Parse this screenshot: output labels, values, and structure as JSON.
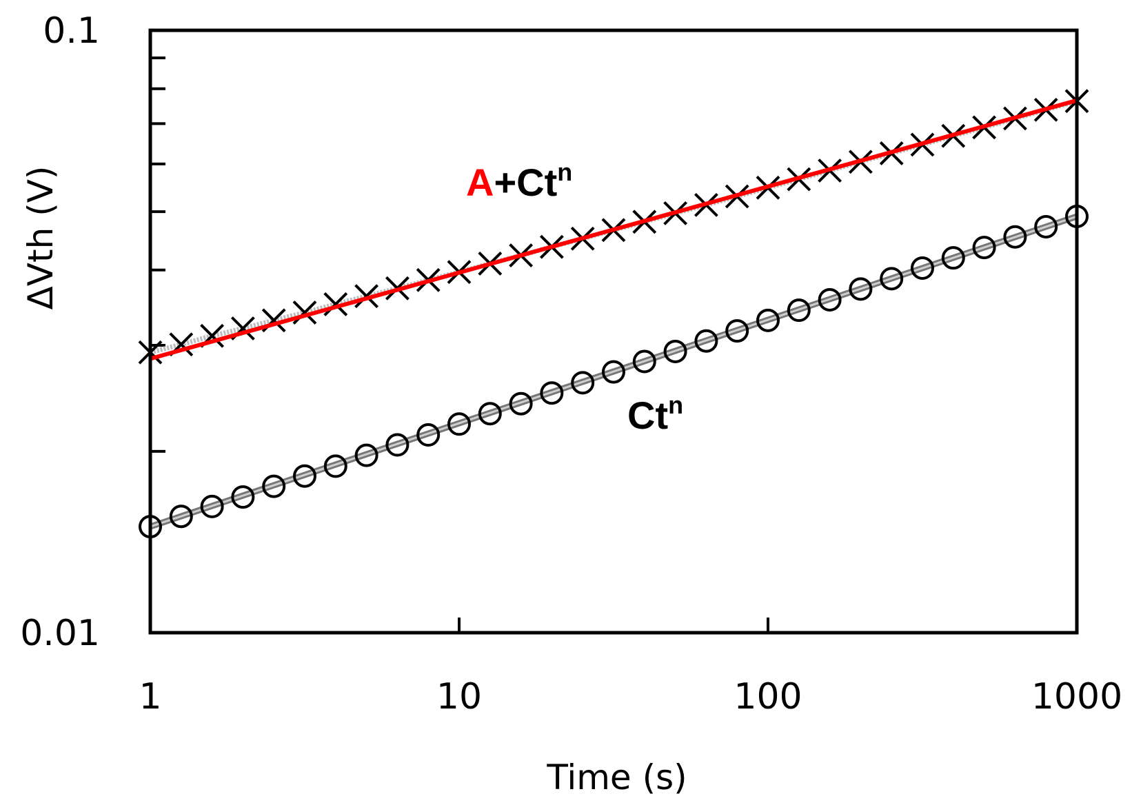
{
  "chart_data": {
    "type": "scatter",
    "title": "",
    "xlabel": "Time (s)",
    "ylabel": "ΔVth (V)",
    "xscale": "log",
    "yscale": "log",
    "xlim": [
      1,
      1000
    ],
    "ylim": [
      0.01,
      0.1
    ],
    "xticks": [
      1,
      10,
      100,
      1000
    ],
    "xtick_labels": [
      "1",
      "10",
      "100",
      "1000"
    ],
    "yticks": [
      0.01,
      0.1
    ],
    "ytick_labels": [
      "0.01",
      "0.1"
    ],
    "grid": false,
    "series": [
      {
        "name": "A+Ct^n data",
        "marker": "x",
        "x": [
          1,
          1.259,
          1.585,
          1.995,
          2.512,
          3.162,
          3.981,
          5.012,
          6.31,
          7.943,
          10,
          12.59,
          15.85,
          19.95,
          25.12,
          31.62,
          39.81,
          50.12,
          63.1,
          79.43,
          100,
          125.9,
          158.5,
          199.5,
          251.2,
          316.2,
          398.1,
          501.2,
          631,
          794.3,
          1000
        ],
        "y": [
          0.0292,
          0.0301,
          0.0311,
          0.032,
          0.033,
          0.034,
          0.0351,
          0.0362,
          0.0373,
          0.0385,
          0.0397,
          0.041,
          0.0423,
          0.0437,
          0.0451,
          0.0466,
          0.0481,
          0.0497,
          0.0513,
          0.053,
          0.0548,
          0.0566,
          0.0585,
          0.0605,
          0.0625,
          0.0646,
          0.0668,
          0.069,
          0.0714,
          0.0738,
          0.0763
        ]
      },
      {
        "name": "Ct^n data",
        "marker": "o",
        "x": [
          1,
          1.259,
          1.585,
          1.995,
          2.512,
          3.162,
          3.981,
          5.012,
          6.31,
          7.943,
          10,
          12.59,
          15.85,
          19.95,
          25.12,
          31.62,
          39.81,
          50.12,
          63.1,
          79.43,
          100,
          125.9,
          158.5,
          199.5,
          251.2,
          316.2,
          398.1,
          501.2,
          631,
          794.3,
          1000
        ],
        "y": [
          0.015,
          0.0156,
          0.0162,
          0.0168,
          0.0175,
          0.0182,
          0.0189,
          0.0197,
          0.0205,
          0.0213,
          0.0222,
          0.0231,
          0.024,
          0.025,
          0.026,
          0.0271,
          0.0282,
          0.0293,
          0.0305,
          0.0317,
          0.033,
          0.0343,
          0.0357,
          0.0372,
          0.0387,
          0.0403,
          0.0419,
          0.0436,
          0.0454,
          0.0472,
          0.0491
        ]
      }
    ],
    "fits": [
      {
        "name": "A+Ct^n fit",
        "color": "#ff0000",
        "x": [
          1,
          1000
        ],
        "y": [
          0.0285,
          0.0765
        ]
      },
      {
        "name": "Ct^n fit",
        "color": "#808080",
        "x": [
          1,
          1000
        ],
        "y": [
          0.015,
          0.0491
        ]
      }
    ],
    "annotations": [
      {
        "parts": [
          {
            "text": "A",
            "color": "#ff0000"
          },
          {
            "text": "+Ct",
            "color": "#000000"
          }
        ],
        "superscript": "n",
        "sup_color": "#000000"
      },
      {
        "parts": [
          {
            "text": "Ct",
            "color": "#000000"
          }
        ],
        "superscript": "n",
        "sup_color": "#000000"
      }
    ]
  }
}
